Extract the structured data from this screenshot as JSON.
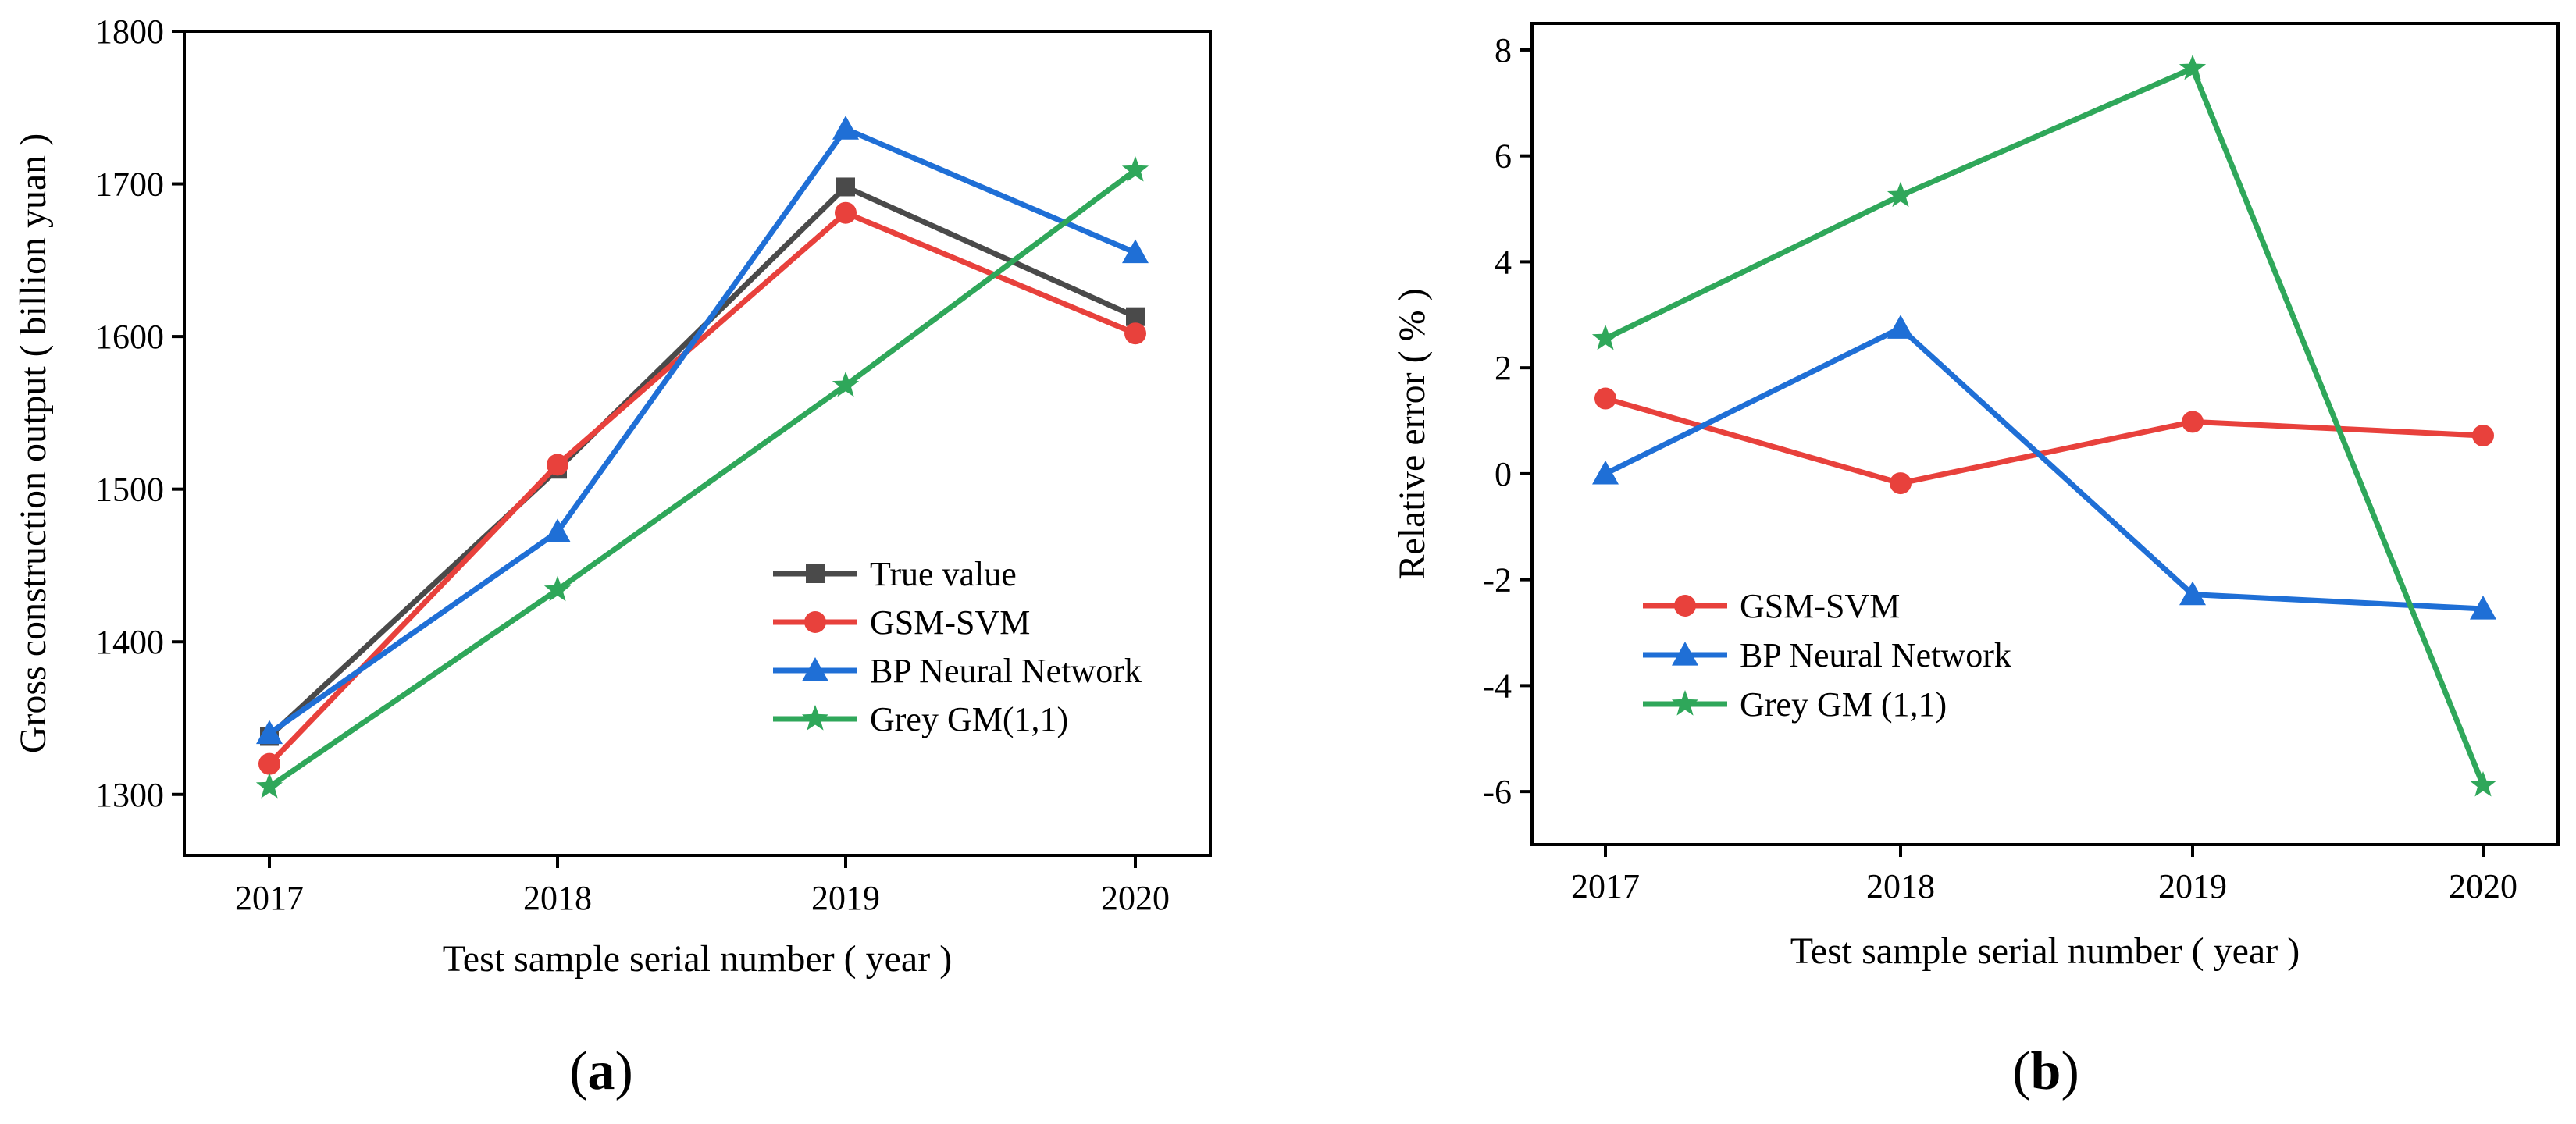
{
  "chart_data": [
    {
      "type": "line",
      "panel_label": "(a)",
      "panel_label_parts": [
        "(",
        "a",
        ")"
      ],
      "categories": [
        "2017",
        "2018",
        "2019",
        "2020"
      ],
      "xlabel": "Test sample serial number ( year )",
      "ylabel": "Gross construction output ( billion yuan )",
      "ylim": [
        1260,
        1800
      ],
      "yticks": [
        "1300",
        "1400",
        "1500",
        "1600",
        "1700",
        "1800"
      ],
      "legend_position": "lower-right",
      "series": [
        {
          "name": "True value",
          "marker": "square",
          "color": "#4a4a4a",
          "values": [
            1338,
            1513,
            1698,
            1613
          ]
        },
        {
          "name": "GSM-SVM",
          "marker": "circle",
          "color": "#e8413c",
          "values": [
            1320,
            1516,
            1681,
            1602
          ]
        },
        {
          "name": "BP Neural Network",
          "marker": "triangle",
          "color": "#1f6fd6",
          "values": [
            1340,
            1472,
            1736,
            1655
          ]
        },
        {
          "name": "Grey GM(1,1)",
          "marker": "star",
          "color": "#2fa75a",
          "values": [
            1305,
            1434,
            1568,
            1709
          ]
        }
      ]
    },
    {
      "type": "line",
      "panel_label": "(b)",
      "panel_label_parts": [
        "(",
        "b",
        ")"
      ],
      "categories": [
        "2017",
        "2018",
        "2019",
        "2020"
      ],
      "xlabel": "Test sample serial number ( year )",
      "ylabel": "Relative error ( % )",
      "ylim": [
        -7,
        8.5
      ],
      "yticks": [
        "-6",
        "-4",
        "-2",
        "0",
        "2",
        "4",
        "6",
        "8"
      ],
      "legend_position": "lower-left",
      "series": [
        {
          "name": "GSM-SVM",
          "marker": "circle",
          "color": "#e8413c",
          "values": [
            1.42,
            -0.18,
            0.98,
            0.72
          ]
        },
        {
          "name": "BP Neural Network",
          "marker": "triangle",
          "color": "#1f6fd6",
          "values": [
            0.0,
            2.75,
            -2.28,
            -2.55
          ]
        },
        {
          "name": "Grey GM (1,1)",
          "marker": "star",
          "color": "#2fa75a",
          "values": [
            2.55,
            5.25,
            7.65,
            -5.88
          ]
        }
      ]
    }
  ]
}
